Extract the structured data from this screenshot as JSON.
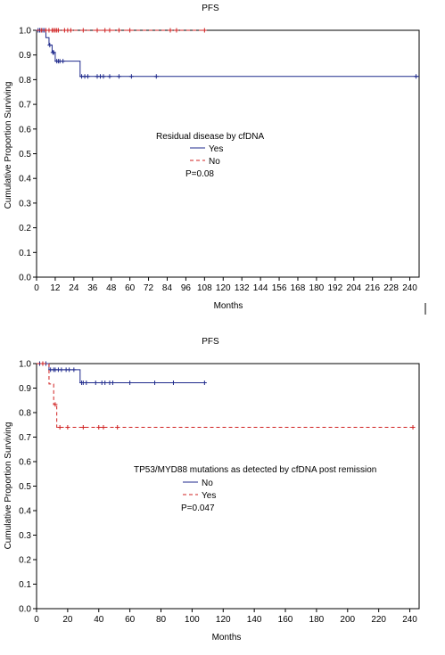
{
  "chart_data": [
    {
      "type": "line",
      "step": true,
      "title": "PFS",
      "xlabel": "Months",
      "ylabel": "Cumulative Proportion Surviving",
      "xlim": [
        0,
        246
      ],
      "ylim": [
        0,
        1.0
      ],
      "x_ticks": [
        0,
        12,
        24,
        36,
        48,
        60,
        72,
        84,
        96,
        108,
        120,
        132,
        144,
        156,
        168,
        180,
        192,
        204,
        216,
        228,
        240
      ],
      "y_ticks": [
        "0.0",
        "0.1",
        "0.2",
        "0.3",
        "0.4",
        "0.5",
        "0.6",
        "0.7",
        "0.8",
        "0.9",
        "1.0"
      ],
      "legend": {
        "title": "Residual disease by cfDNA",
        "placement": "center",
        "entries": [
          {
            "label": "Yes",
            "color": "#1f2a8c",
            "dash": "solid"
          },
          {
            "label": "No",
            "color": "#d02020",
            "dash": "dashed"
          }
        ]
      },
      "annotation": "P=0.08",
      "series": [
        {
          "name": "Yes",
          "color": "#1f2a8c",
          "dash": "solid",
          "steps": [
            [
              0,
              1.0
            ],
            [
              6,
              0.97
            ],
            [
              8,
              0.94
            ],
            [
              10,
              0.91
            ],
            [
              12,
              0.875
            ],
            [
              28,
              0.813
            ],
            [
              246,
              0.813
            ]
          ],
          "censors": [
            [
              1,
              1.0
            ],
            [
              2,
              1.0
            ],
            [
              3,
              1.0
            ],
            [
              4,
              1.0
            ],
            [
              5,
              1.0
            ],
            [
              8.5,
              0.94
            ],
            [
              10.5,
              0.91
            ],
            [
              11,
              0.91
            ],
            [
              13,
              0.875
            ],
            [
              14,
              0.875
            ],
            [
              15,
              0.875
            ],
            [
              17,
              0.875
            ],
            [
              29,
              0.813
            ],
            [
              31,
              0.813
            ],
            [
              33,
              0.813
            ],
            [
              39,
              0.813
            ],
            [
              41,
              0.813
            ],
            [
              43,
              0.813
            ],
            [
              47,
              0.813
            ],
            [
              53,
              0.813
            ],
            [
              61,
              0.813
            ],
            [
              77,
              0.813
            ],
            [
              244,
              0.813
            ]
          ]
        },
        {
          "name": "No",
          "color": "#d02020",
          "dash": "dashed",
          "steps": [
            [
              0,
              1.0
            ],
            [
              108,
              1.0
            ]
          ],
          "censors": [
            [
              3,
              1.0
            ],
            [
              6,
              1.0
            ],
            [
              8,
              1.0
            ],
            [
              10,
              1.0
            ],
            [
              11,
              1.0
            ],
            [
              12,
              1.0
            ],
            [
              13,
              1.0
            ],
            [
              14,
              1.0
            ],
            [
              18,
              1.0
            ],
            [
              20,
              1.0
            ],
            [
              22,
              1.0
            ],
            [
              30,
              1.0
            ],
            [
              39,
              1.0
            ],
            [
              44,
              1.0
            ],
            [
              47,
              1.0
            ],
            [
              53,
              1.0
            ],
            [
              60,
              1.0
            ],
            [
              86,
              1.0
            ],
            [
              90,
              1.0
            ],
            [
              108,
              1.0
            ]
          ]
        }
      ]
    },
    {
      "type": "line",
      "step": true,
      "title": "PFS",
      "xlabel": "Months",
      "ylabel": "Cumulative Proportion Surviving",
      "xlim": [
        0,
        246
      ],
      "ylim": [
        0,
        1.0
      ],
      "x_ticks": [
        0,
        20,
        40,
        60,
        80,
        100,
        120,
        140,
        160,
        180,
        200,
        220,
        240
      ],
      "y_ticks": [
        "0.0",
        "0.1",
        "0.2",
        "0.3",
        "0.4",
        "0.5",
        "0.6",
        "0.7",
        "0.8",
        "0.9",
        "1.0"
      ],
      "legend": {
        "title": "TP53/MYD88 mutations as detected by cfDNA post remission",
        "placement": "center",
        "entries": [
          {
            "label": "No",
            "color": "#1f2a8c",
            "dash": "solid"
          },
          {
            "label": "Yes",
            "color": "#d02020",
            "dash": "dashed"
          }
        ]
      },
      "annotation": "P=0.047",
      "series": [
        {
          "name": "No",
          "color": "#1f2a8c",
          "dash": "solid",
          "steps": [
            [
              0,
              1.0
            ],
            [
              8,
              0.975
            ],
            [
              28,
              0.922
            ],
            [
              108,
              0.922
            ]
          ],
          "censors": [
            [
              2,
              1.0
            ],
            [
              4,
              1.0
            ],
            [
              6,
              1.0
            ],
            [
              9,
              0.975
            ],
            [
              11,
              0.975
            ],
            [
              12,
              0.975
            ],
            [
              14,
              0.975
            ],
            [
              16,
              0.975
            ],
            [
              19,
              0.975
            ],
            [
              21,
              0.975
            ],
            [
              24,
              0.975
            ],
            [
              29,
              0.922
            ],
            [
              30,
              0.922
            ],
            [
              32,
              0.922
            ],
            [
              38,
              0.922
            ],
            [
              42,
              0.922
            ],
            [
              44,
              0.922
            ],
            [
              47,
              0.922
            ],
            [
              49,
              0.922
            ],
            [
              60,
              0.922
            ],
            [
              76,
              0.922
            ],
            [
              88,
              0.922
            ],
            [
              108,
              0.922
            ]
          ]
        },
        {
          "name": "Yes",
          "color": "#d02020",
          "dash": "dashed",
          "steps": [
            [
              0,
              1.0
            ],
            [
              8,
              0.917
            ],
            [
              11,
              0.833
            ],
            [
              13,
              0.74
            ],
            [
              244,
              0.74
            ]
          ],
          "censors": [
            [
              4,
              1.0
            ],
            [
              12,
              0.833
            ],
            [
              15,
              0.74
            ],
            [
              20,
              0.74
            ],
            [
              30,
              0.74
            ],
            [
              40,
              0.74
            ],
            [
              43,
              0.74
            ],
            [
              52,
              0.74
            ],
            [
              242,
              0.74
            ]
          ]
        }
      ]
    }
  ]
}
